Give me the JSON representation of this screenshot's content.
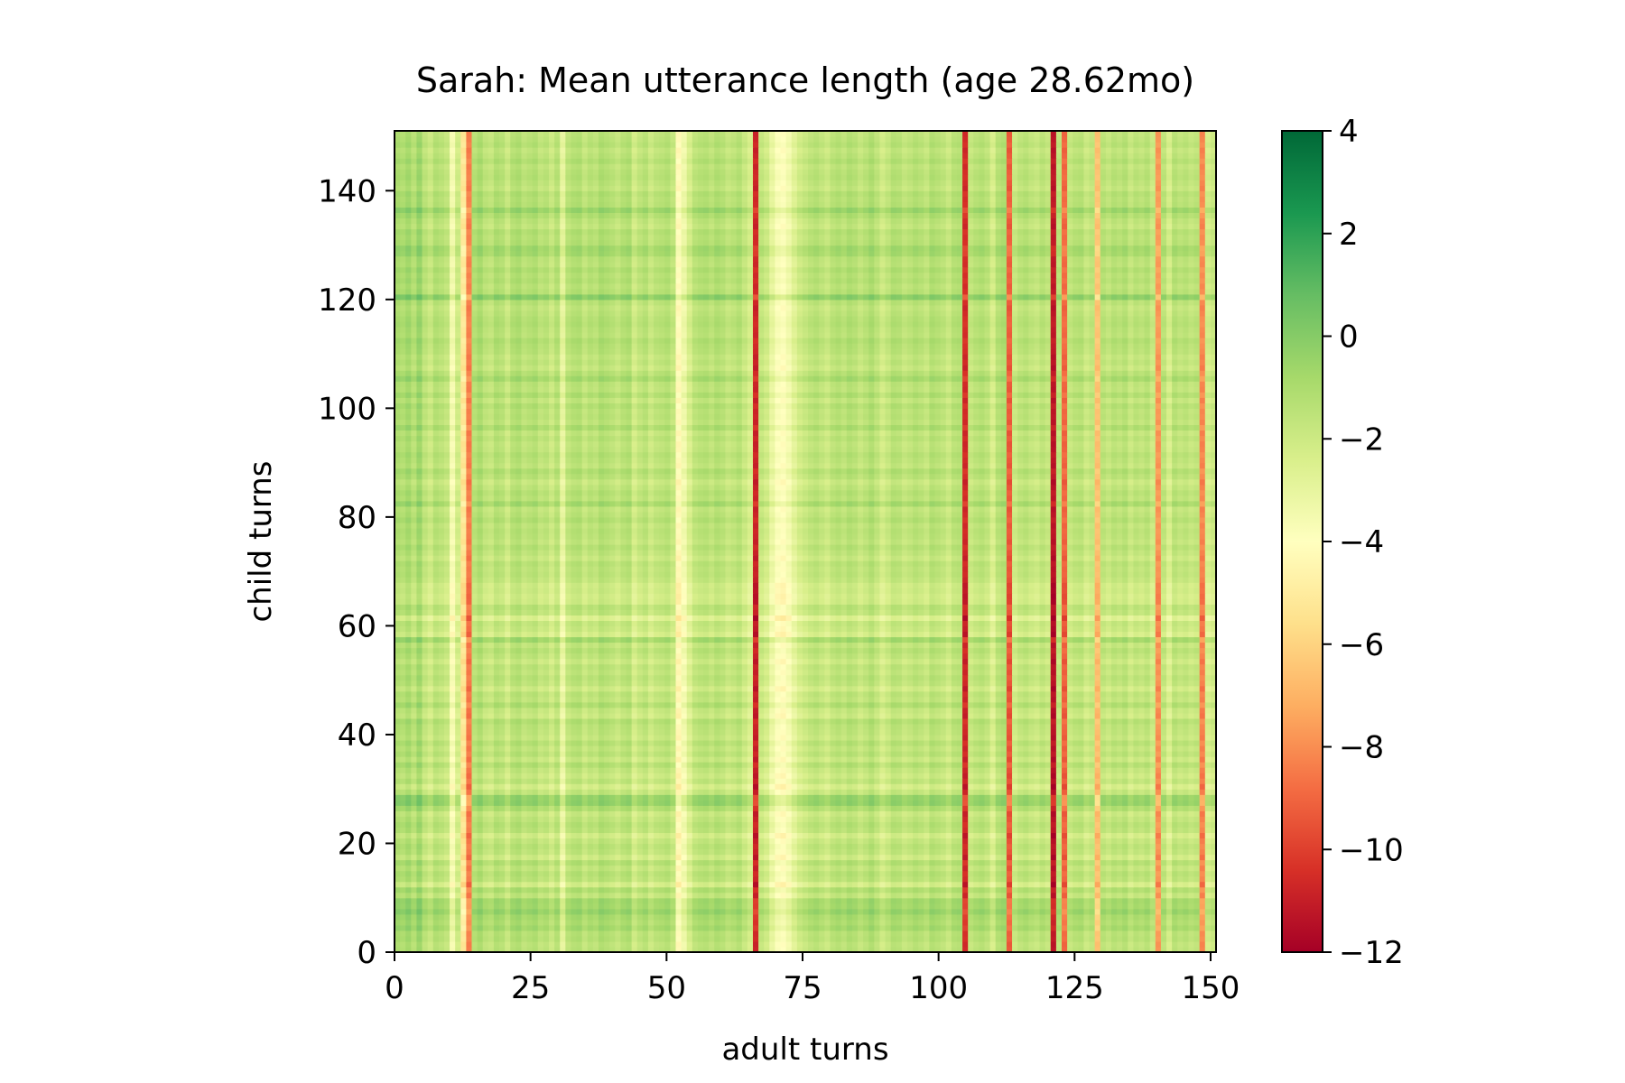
{
  "chart_data": {
    "type": "heatmap",
    "title": "Sarah: Mean utterance length (age 28.62mo)",
    "xlabel": "adult turns",
    "ylabel": "child turns",
    "xlim": [
      0,
      151
    ],
    "ylim": [
      0,
      151
    ],
    "x_ticks": [
      0,
      25,
      50,
      75,
      100,
      125,
      150
    ],
    "y_ticks": [
      0,
      20,
      40,
      60,
      80,
      100,
      120,
      140
    ],
    "x_tick_labels": [
      "0",
      "25",
      "50",
      "75",
      "100",
      "125",
      "150"
    ],
    "y_tick_labels": [
      "0",
      "20",
      "40",
      "60",
      "80",
      "100",
      "120",
      "140"
    ],
    "colormap": "RdYlGn",
    "colorbar": {
      "min": -12,
      "max": 4,
      "ticks": [
        4,
        2,
        0,
        -2,
        -4,
        -6,
        -8,
        -10,
        -12
      ],
      "tick_labels": [
        "4",
        "2",
        "0",
        "−2",
        "−4",
        "−6",
        "−8",
        "−10",
        "−12"
      ]
    },
    "value_model": "cell value ≈ adult_turn_profile[x] + child_turn_profile[y]",
    "adult_turn_profile": [
      -1.2,
      -1.4,
      -1.0,
      -1.6,
      -0.8,
      -1.8,
      -2.2,
      -1.5,
      -1.7,
      -2.0,
      -3.8,
      -2.4,
      -5.5,
      -8.6,
      -1.6,
      -1.2,
      -1.8,
      -2.0,
      -1.4,
      -1.6,
      -2.2,
      -1.5,
      -1.3,
      -1.8,
      -1.6,
      -1.4,
      -1.9,
      -1.7,
      -2.2,
      -1.6,
      -3.2,
      -1.8,
      -1.5,
      -1.4,
      -2.0,
      -1.6,
      -1.8,
      -1.3,
      -1.5,
      -1.7,
      -2.0,
      -1.6,
      -1.4,
      -2.4,
      -1.9,
      -1.6,
      -2.2,
      -1.8,
      -1.7,
      -1.5,
      -2.0,
      -4.5,
      -3.6,
      -2.6,
      -1.8,
      -1.6,
      -1.5,
      -1.8,
      -1.4,
      -1.6,
      -2.0,
      -1.8,
      -1.5,
      -2.1,
      -2.6,
      -11.0,
      -2.0,
      -2.4,
      -3.3,
      -4.0,
      -4.2,
      -3.7,
      -3.0,
      -2.4,
      -2.1,
      -1.8,
      -1.6,
      -1.9,
      -2.2,
      -1.7,
      -1.5,
      -1.8,
      -1.4,
      -1.6,
      -2.0,
      -1.7,
      -1.3,
      -1.8,
      -2.4,
      -2.0,
      -1.5,
      -1.6,
      -2.0,
      -1.8,
      -1.5,
      -1.7,
      -2.0,
      -1.4,
      -1.6,
      -1.8,
      -2.2,
      -1.6,
      -1.5,
      -10.8,
      -2.0,
      -1.7,
      -1.5,
      -1.8,
      -2.6,
      -1.6,
      -1.4,
      -9.5,
      -2.2,
      -1.8,
      -1.6,
      -1.9,
      -2.1,
      -1.7,
      -2.0,
      -11.5,
      -1.8,
      -9.2,
      -2.0,
      -1.7,
      -1.6,
      -2.2,
      -1.9,
      -6.8,
      -1.7,
      -2.0,
      -1.6,
      -1.8,
      -1.5,
      -2.1,
      -1.7,
      -1.9,
      -1.6,
      -2.2,
      -8.0,
      -1.8,
      -2.6,
      -1.6,
      -1.9,
      -1.7,
      -2.0,
      -1.8,
      -8.4,
      -2.5,
      -2.2
    ],
    "child_turn_profile": [
      0.2,
      0.1,
      0.4,
      0.3,
      0.9,
      0.6,
      0.8,
      1.3,
      0.9,
      1.0,
      0.0,
      0.6,
      -0.6,
      0.2,
      0.4,
      0.0,
      0.5,
      -0.4,
      0.1,
      0.3,
      0.0,
      -0.5,
      0.2,
      0.4,
      0.1,
      -0.2,
      0.6,
      1.4,
      1.3,
      0.0,
      -0.6,
      0.1,
      -0.3,
      0.0,
      0.5,
      -0.2,
      0.3,
      0.0,
      0.4,
      -0.1,
      0.1,
      0.2,
      0.5,
      -0.3,
      -0.1,
      0.6,
      0.0,
      0.2,
      -0.4,
      0.1,
      0.3,
      0.0,
      0.2,
      -0.3,
      0.1,
      0.4,
      0.0,
      1.0,
      -0.6,
      -0.2,
      0.0,
      -0.9,
      0.1,
      0.3,
      -0.4,
      -0.5,
      -0.3,
      -0.4,
      0.0,
      0.2,
      0.1,
      0.3,
      -0.2,
      0.1,
      0.4,
      0.0,
      0.2,
      0.3,
      0.1,
      0.5,
      0.2,
      0.0,
      0.9,
      0.2,
      0.4,
      0.1,
      -0.2,
      0.3,
      0.6,
      0.0,
      0.2,
      0.4,
      0.1,
      0.0,
      0.3,
      0.0,
      0.7,
      0.1,
      0.3,
      0.2,
      0.5,
      0.0,
      0.6,
      0.1,
      0.2,
      0.9,
      0.4,
      -0.1,
      0.2,
      0.0,
      0.3,
      0.4,
      0.6,
      0.2,
      0.3,
      0.5,
      0.4,
      0.2,
      0.0,
      0.3,
      1.6,
      0.4,
      0.2,
      0.5,
      0.3,
      0.6,
      0.2,
      0.3,
      0.9,
      1.0,
      0.4,
      0.3,
      0.5,
      0.0,
      0.2,
      0.6,
      1.2,
      0.4,
      0.3,
      0.5,
      0.0,
      0.2,
      0.4,
      0.3,
      0.1,
      0.5,
      0.2,
      0.0,
      0.4,
      0.2,
      0.1
    ]
  }
}
